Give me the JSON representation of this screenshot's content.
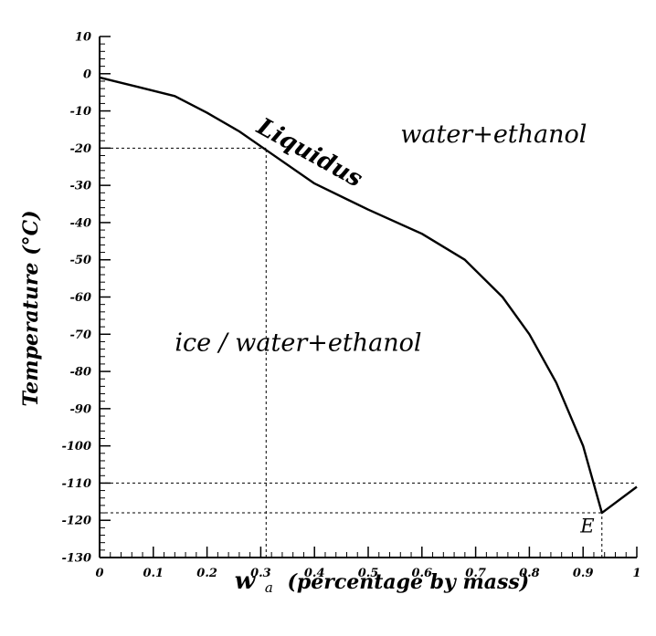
{
  "chart_data": {
    "type": "line",
    "title": "",
    "xlabel": "w",
    "xlabel_subscript": "a",
    "xlabel_rest": "(percentage by mass)",
    "ylabel": "Temperature (°C)",
    "xlim": [
      0,
      1
    ],
    "ylim": [
      -130,
      10
    ],
    "grid": false,
    "legend": "none",
    "x_ticks": [
      {
        "value": 0,
        "label": "0"
      },
      {
        "value": 0.1,
        "label": "0.1"
      },
      {
        "value": 0.2,
        "label": "0.2"
      },
      {
        "value": 0.3,
        "label": "0.3"
      },
      {
        "value": 0.4,
        "label": "0.4"
      },
      {
        "value": 0.5,
        "label": "0.5"
      },
      {
        "value": 0.6,
        "label": "0.6"
      },
      {
        "value": 0.7,
        "label": "0.7"
      },
      {
        "value": 0.8,
        "label": "0.8"
      },
      {
        "value": 0.9,
        "label": "0.9"
      },
      {
        "value": 1,
        "label": "1"
      }
    ],
    "y_ticks": [
      {
        "value": 10,
        "label": "10"
      },
      {
        "value": 0,
        "label": "0"
      },
      {
        "value": -10,
        "label": "-10"
      },
      {
        "value": -20,
        "label": "-20"
      },
      {
        "value": -30,
        "label": "-30"
      },
      {
        "value": -40,
        "label": "-40"
      },
      {
        "value": -50,
        "label": "-50"
      },
      {
        "value": -60,
        "label": "-60"
      },
      {
        "value": -70,
        "label": "-70"
      },
      {
        "value": -80,
        "label": "-80"
      },
      {
        "value": -90,
        "label": "-90"
      },
      {
        "value": -100,
        "label": "-100"
      },
      {
        "value": -110,
        "label": "-110"
      },
      {
        "value": -120,
        "label": "-120"
      },
      {
        "value": -130,
        "label": "-130"
      }
    ],
    "series": [
      {
        "x": [
          0,
          0.07,
          0.14,
          0.2,
          0.26,
          0.3,
          0.4,
          0.5,
          0.6,
          0.68,
          0.75,
          0.8,
          0.85,
          0.9,
          0.935,
          1.0
        ],
        "y": [
          -1,
          -3.5,
          -6,
          -10.5,
          -15.5,
          -19.5,
          -29.5,
          -36.5,
          -43,
          -50,
          -60,
          -70,
          -83,
          -100,
          -118,
          -111
        ]
      }
    ],
    "reference_lines": [
      {
        "kind": "horizontal",
        "y": -20,
        "x_from": 0,
        "x_to": 0.31
      },
      {
        "kind": "vertical",
        "x": 0.31,
        "y_from": -130,
        "y_to": -20
      },
      {
        "kind": "horizontal",
        "y": -110,
        "x_from": 0,
        "x_to": 1
      },
      {
        "kind": "horizontal",
        "y": -118,
        "x_from": 0,
        "x_to": 0.935
      },
      {
        "kind": "vertical",
        "x": 0.935,
        "y_from": -130,
        "y_to": -118
      }
    ],
    "annotations": [
      {
        "text": "Liquidus",
        "x": 0.29,
        "y": -15.5,
        "style": "liquidus-label",
        "rotate": 29
      },
      {
        "text": "water+ethanol",
        "x": 0.56,
        "y": -18.5,
        "style": "region-label"
      },
      {
        "text": "ice / water+ethanol",
        "x": 0.14,
        "y": -74.5,
        "style": "region-label"
      },
      {
        "text": "E",
        "x": 0.895,
        "y": -123.3,
        "style": "e-label"
      }
    ]
  }
}
